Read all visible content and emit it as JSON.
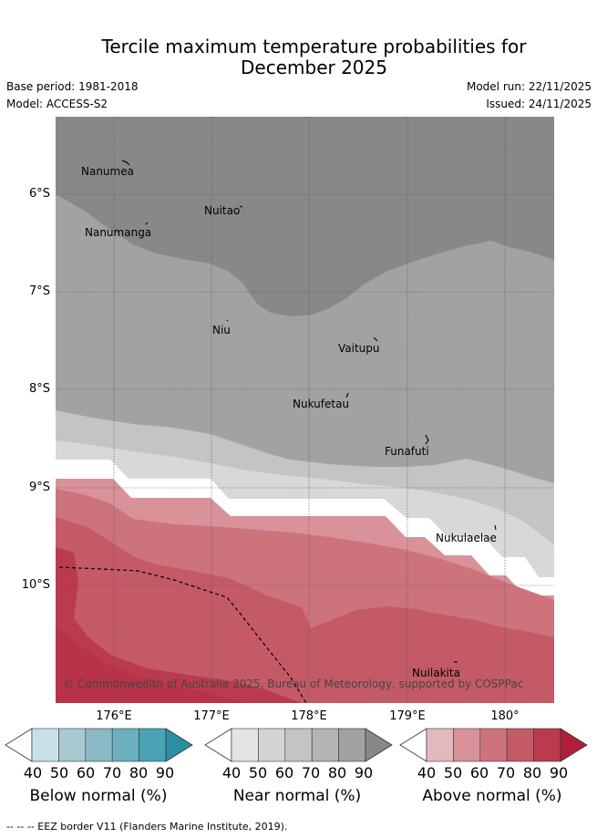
{
  "title_line1": "Tercile maximum temperature probabilities for",
  "title_line2": "December 2025",
  "base_period": "Base period: 1981-2018",
  "model": "Model: ACCESS-S2",
  "model_run": "Model run: 22/11/2025",
  "issued": "Issued: 24/11/2025",
  "lat_labels": [
    "6°S",
    "7°S",
    "8°S",
    "9°S",
    "10°S"
  ],
  "lon_labels": [
    "176°E",
    "177°E",
    "178°E",
    "179°E",
    "180°"
  ],
  "places": [
    "Nanumea",
    "Nuitao",
    "Nanumanga",
    "Niu",
    "Vaitupu",
    "Nukufetau",
    "Funafuti",
    "Nukulaelae",
    "Nuilakita"
  ],
  "copyright": "© Commonwealth of Australia 2025, Bureau of Meteorology, supported by COSPPac",
  "colorbars": {
    "ticks": [
      "40",
      "50",
      "60",
      "70",
      "80",
      "90"
    ],
    "below_title": "Below normal (%)",
    "near_title": "Near normal (%)",
    "above_title": "Above normal (%)",
    "below_colors": [
      "#ffffff",
      "#c8e1e8",
      "#a8c9cf",
      "#8bb8c5",
      "#6cafbe",
      "#4aa3b5",
      "#2b8fa3"
    ],
    "near_colors": [
      "#ffffff",
      "#e4e4e4",
      "#d4d4d4",
      "#c4c4c4",
      "#b4b4b4",
      "#a2a2a2",
      "#888888"
    ],
    "above_colors": [
      "#ffffff",
      "#e3b9bf",
      "#d9929a",
      "#cd737b",
      "#c55a67",
      "#bb3a4d",
      "#b01e3c"
    ]
  },
  "footnote": "-- -- -- EEZ border V11 (Flanders Marine Institute, 2019)."
}
